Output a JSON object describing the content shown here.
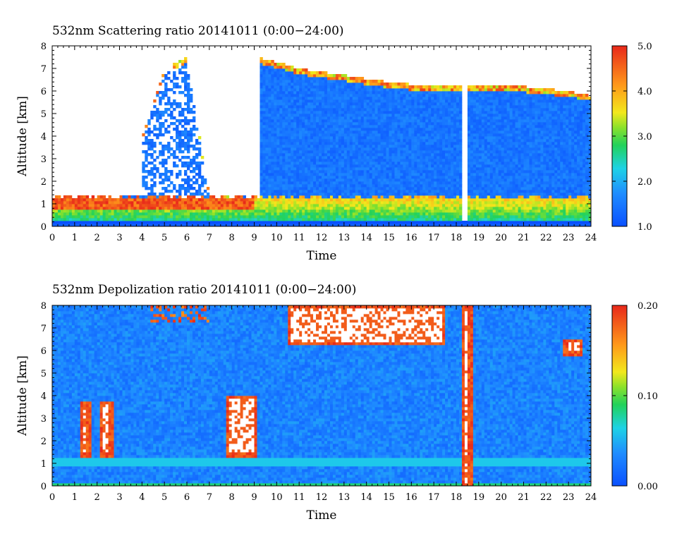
{
  "chart_data": [
    {
      "type": "heatmap",
      "title": "532nm Scattering ratio  20141011 (0:00−24:00)",
      "xlabel": "Time",
      "ylabel": "Altitude [km]",
      "xlim": [
        0,
        24
      ],
      "ylim": [
        0,
        8
      ],
      "x_ticks": [
        "0",
        "1",
        "2",
        "3",
        "4",
        "5",
        "6",
        "7",
        "8",
        "9",
        "10",
        "11",
        "12",
        "13",
        "14",
        "15",
        "16",
        "17",
        "18",
        "19",
        "20",
        "21",
        "22",
        "23",
        "24"
      ],
      "y_ticks": [
        "0",
        "1",
        "2",
        "3",
        "4",
        "5",
        "6",
        "7",
        "8"
      ],
      "colorbar": {
        "range": [
          1.0,
          5.0
        ],
        "ticks": [
          "1.0",
          "2.0",
          "3.0",
          "4.0",
          "5.0"
        ]
      },
      "cloud_top_km": [
        {
          "t": 0,
          "z": 1.1
        },
        {
          "t": 2,
          "z": 1.2
        },
        {
          "t": 3,
          "z": 1.3
        },
        {
          "t": 4,
          "z": 4.0
        },
        {
          "t": 5,
          "z": 7.0
        },
        {
          "t": 6,
          "z": 7.5
        },
        {
          "t": 7,
          "z": 1.4
        },
        {
          "t": 8.5,
          "z": 1.4
        },
        {
          "t": 9.2,
          "z": 7.5
        },
        {
          "t": 11,
          "z": 7.0
        },
        {
          "t": 13,
          "z": 6.7
        },
        {
          "t": 15,
          "z": 6.4
        },
        {
          "t": 17,
          "z": 6.2
        },
        {
          "t": 18.2,
          "z": 6.2
        },
        {
          "t": 19,
          "z": 6.2
        },
        {
          "t": 21,
          "z": 6.2
        },
        {
          "t": 23,
          "z": 6.0
        },
        {
          "t": 24,
          "z": 5.8
        }
      ],
      "boundary_layer_top_km": 1.2,
      "no_data_gap": [
        18.2,
        18.5
      ],
      "legend": "colorbar-right"
    },
    {
      "type": "heatmap",
      "title": "532nm Depolization ratio  20141011 (0:00−24:00)",
      "xlabel": "Time",
      "ylabel": "Altitude [km]",
      "xlim": [
        0,
        24
      ],
      "ylim": [
        0,
        8
      ],
      "x_ticks": [
        "0",
        "1",
        "2",
        "3",
        "4",
        "5",
        "6",
        "7",
        "8",
        "9",
        "10",
        "11",
        "12",
        "13",
        "14",
        "15",
        "16",
        "17",
        "18",
        "19",
        "20",
        "21",
        "22",
        "23",
        "24"
      ],
      "y_ticks": [
        "0",
        "1",
        "2",
        "3",
        "4",
        "5",
        "6",
        "7",
        "8"
      ],
      "colorbar": {
        "range": [
          0.0,
          0.2
        ],
        "ticks": [
          "0.00",
          "0.10",
          "0.20"
        ]
      },
      "high_depol_regions": [
        {
          "t": [
            1.2,
            1.7
          ],
          "z": [
            1.3,
            3.8
          ]
        },
        {
          "t": [
            2.1,
            2.7
          ],
          "z": [
            1.3,
            3.8
          ]
        },
        {
          "t": [
            7.7,
            9.1
          ],
          "z": [
            1.3,
            4.0
          ]
        },
        {
          "t": [
            18.2,
            18.7
          ],
          "z": [
            0.0,
            8.0
          ]
        },
        {
          "t": [
            10.5,
            17.5
          ],
          "z": [
            6.2,
            8.0
          ]
        },
        {
          "t": [
            22.8,
            23.6
          ],
          "z": [
            5.8,
            6.5
          ]
        }
      ],
      "legend": "colorbar-right"
    }
  ]
}
